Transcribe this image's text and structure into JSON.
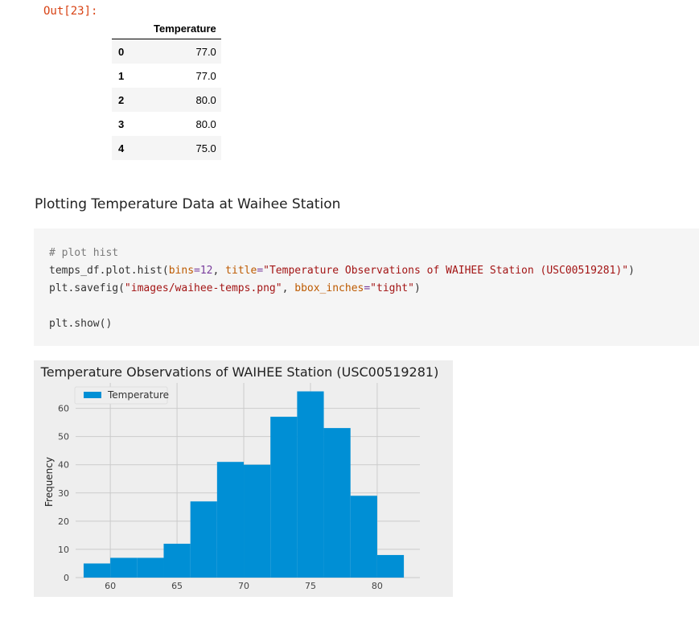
{
  "cell": {
    "prompt": "Out[23]:"
  },
  "dataframe": {
    "column": "Temperature",
    "rows": [
      {
        "index": "0",
        "value": "77.0"
      },
      {
        "index": "1",
        "value": "77.0"
      },
      {
        "index": "2",
        "value": "80.0"
      },
      {
        "index": "3",
        "value": "80.0"
      },
      {
        "index": "4",
        "value": "75.0"
      }
    ]
  },
  "heading": "Plotting Temperature Data at Waihee Station",
  "code": {
    "line1_comment": "# plot hist",
    "line2_a": "temps_df.plot.hist(",
    "line2_kw1": "bins",
    "line2_eq1": "=",
    "line2_v1": "12",
    "line2_sep": ", ",
    "line2_kw2": "title",
    "line2_eq2": "=",
    "line2_str": "\"Temperature Observations of WAIHEE Station (USC00519281)\"",
    "line2_end": ")",
    "line3_a": "plt.savefig(",
    "line3_str1": "\"images/waihee-temps.png\"",
    "line3_sep": ", ",
    "line3_kw": "bbox_inches",
    "line3_eq": "=",
    "line3_str2": "\"tight\"",
    "line3_end": ")",
    "line5": "plt.show()"
  },
  "chart_data": {
    "type": "bar",
    "title": "Temperature Observations of WAIHEE Station (USC00519281)",
    "xlabel": "",
    "ylabel": "Frequency",
    "legend": "Temperature",
    "legend_position": "top-left",
    "bin_edges": [
      58,
      60,
      62,
      64,
      66,
      68,
      70,
      72,
      74,
      76,
      78,
      80,
      82
    ],
    "values": [
      5,
      7,
      7,
      12,
      27,
      41,
      40,
      57,
      66,
      53,
      29,
      8
    ],
    "xticks": [
      60,
      65,
      70,
      75,
      80
    ],
    "yticks": [
      0,
      10,
      20,
      30,
      40,
      50,
      60
    ],
    "xlim": [
      57.4,
      83.2
    ],
    "ylim": [
      0,
      69
    ],
    "grid": true,
    "bar_color": "#008fd5"
  }
}
